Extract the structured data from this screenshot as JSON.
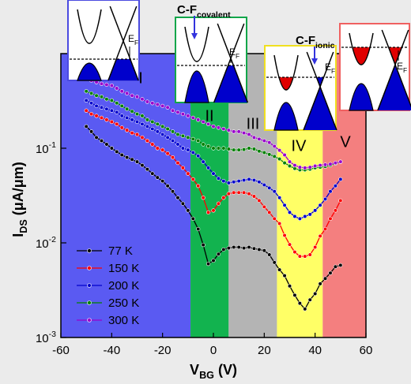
{
  "chart_data": {
    "type": "line",
    "xlabel": "VBG (V)",
    "ylabel": "IDS (μA/μm)",
    "log_y": true,
    "xlim": [
      -60,
      60
    ],
    "ylim": [
      0.001,
      1
    ],
    "xticks": [
      -60,
      -40,
      -20,
      0,
      20,
      40,
      60
    ],
    "yticks": [
      {
        "value": 0.001,
        "label": "10-3"
      },
      {
        "value": 0.01,
        "label": "10-2"
      },
      {
        "value": 0.1,
        "label": "10-1"
      }
    ],
    "legend": "lower left",
    "regions": [
      {
        "label": "I",
        "start": -60,
        "end": -9,
        "color": "#5a5af2"
      },
      {
        "label": "II",
        "start": -9,
        "end": 6,
        "color": "#12b34f"
      },
      {
        "label": "III",
        "start": 6,
        "end": 25,
        "color": "#b4b4b4"
      },
      {
        "label": "IV",
        "start": 25,
        "end": 43,
        "color": "#ffff66"
      },
      {
        "label": "V",
        "start": 43,
        "end": 60,
        "color": "#f47f7f"
      }
    ],
    "annotations": [
      "C-Fcovalent",
      "C-Fionic"
    ],
    "insets": [
      {
        "label": "EF"
      },
      {
        "label": "EF"
      },
      {
        "label": "EF"
      },
      {
        "label": "EF"
      }
    ],
    "x": [
      -50,
      -48,
      -46,
      -44,
      -42,
      -40,
      -38,
      -36,
      -34,
      -32,
      -30,
      -28,
      -26,
      -24,
      -22,
      -20,
      -18,
      -16,
      -14,
      -12,
      -10,
      -8,
      -6,
      -4,
      -2,
      0,
      2,
      4,
      6,
      8,
      10,
      12,
      14,
      16,
      18,
      20,
      22,
      24,
      26,
      28,
      30,
      32,
      34,
      36,
      38,
      40,
      42,
      44,
      46,
      48,
      50
    ],
    "series": [
      {
        "name": "77 K",
        "color": "#000000",
        "values": [
          0.17,
          0.15,
          0.13,
          0.12,
          0.11,
          0.1,
          0.092,
          0.085,
          0.08,
          0.076,
          0.072,
          0.066,
          0.06,
          0.054,
          0.049,
          0.045,
          0.04,
          0.035,
          0.03,
          0.026,
          0.022,
          0.018,
          0.014,
          0.0095,
          0.006,
          0.0065,
          0.0076,
          0.0085,
          0.0088,
          0.009,
          0.009,
          0.0088,
          0.009,
          0.0087,
          0.0085,
          0.0083,
          0.0075,
          0.0062,
          0.0052,
          0.0045,
          0.0035,
          0.0028,
          0.0023,
          0.002,
          0.0025,
          0.0029,
          0.0037,
          0.0042,
          0.0048,
          0.0056,
          0.0058
        ]
      },
      {
        "name": "150 K",
        "color": "#ff0000",
        "values": [
          0.25,
          0.23,
          0.22,
          0.21,
          0.2,
          0.19,
          0.18,
          0.165,
          0.155,
          0.145,
          0.14,
          0.13,
          0.12,
          0.11,
          0.1,
          0.096,
          0.088,
          0.08,
          0.07,
          0.062,
          0.054,
          0.047,
          0.04,
          0.03,
          0.021,
          0.022,
          0.026,
          0.03,
          0.033,
          0.034,
          0.034,
          0.034,
          0.033,
          0.031,
          0.028,
          0.024,
          0.021,
          0.018,
          0.016,
          0.012,
          0.0096,
          0.008,
          0.0072,
          0.0072,
          0.0075,
          0.009,
          0.0118,
          0.014,
          0.018,
          0.022,
          0.028
        ]
      },
      {
        "name": "200 K",
        "color": "#0000cc",
        "values": [
          0.32,
          0.3,
          0.28,
          0.27,
          0.26,
          0.25,
          0.24,
          0.22,
          0.21,
          0.2,
          0.19,
          0.18,
          0.17,
          0.16,
          0.15,
          0.14,
          0.13,
          0.12,
          0.11,
          0.1,
          0.096,
          0.09,
          0.083,
          0.072,
          0.062,
          0.054,
          0.048,
          0.045,
          0.043,
          0.044,
          0.045,
          0.046,
          0.047,
          0.046,
          0.044,
          0.041,
          0.038,
          0.035,
          0.03,
          0.025,
          0.021,
          0.019,
          0.018,
          0.019,
          0.02,
          0.022,
          0.025,
          0.029,
          0.035,
          0.04,
          0.047
        ]
      },
      {
        "name": "250 K",
        "color": "#008000",
        "values": [
          0.4,
          0.38,
          0.36,
          0.35,
          0.33,
          0.32,
          0.3,
          0.28,
          0.26,
          0.245,
          0.23,
          0.22,
          0.2,
          0.19,
          0.18,
          0.17,
          0.16,
          0.15,
          0.14,
          0.135,
          0.13,
          0.125,
          0.12,
          0.11,
          0.105,
          0.1,
          0.1,
          0.1,
          0.098,
          0.096,
          0.096,
          0.097,
          0.1,
          0.098,
          0.093,
          0.09,
          0.086,
          0.082,
          0.077,
          0.07,
          0.065,
          0.061,
          0.059,
          0.059,
          0.06,
          0.062,
          0.063,
          0.064,
          0.066,
          0.069,
          0.072
        ]
      },
      {
        "name": "300 K",
        "color": "#9900cc",
        "values": [
          0.54,
          0.52,
          0.5,
          0.48,
          0.47,
          0.46,
          0.43,
          0.4,
          0.38,
          0.36,
          0.35,
          0.33,
          0.31,
          0.3,
          0.29,
          0.28,
          0.27,
          0.25,
          0.24,
          0.23,
          0.22,
          0.21,
          0.2,
          0.19,
          0.18,
          0.17,
          0.165,
          0.16,
          0.155,
          0.15,
          0.15,
          0.145,
          0.14,
          0.13,
          0.125,
          0.12,
          0.115,
          0.105,
          0.095,
          0.085,
          0.072,
          0.066,
          0.063,
          0.062,
          0.063,
          0.065,
          0.066,
          0.067,
          0.068,
          0.07,
          0.072
        ]
      }
    ]
  }
}
